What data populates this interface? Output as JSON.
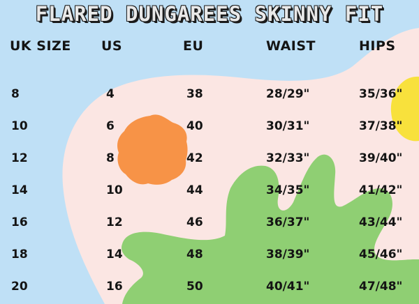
{
  "title": "FLARED DUNGAREES SKINNY FIT",
  "headers": [
    "UK SIZE",
    "US",
    "EU",
    "WAIST",
    "HIPS"
  ],
  "rows": [
    [
      "8",
      "4",
      "38",
      "28/29\"",
      "35/36\""
    ],
    [
      "10",
      "6",
      "40",
      "30/31\"",
      "37/38\""
    ],
    [
      "12",
      "8",
      "42",
      "32/33\"",
      "39/40\""
    ],
    [
      "14",
      "10",
      "44",
      "34/35\"",
      "41/42\""
    ],
    [
      "16",
      "12",
      "46",
      "36/37\"",
      "43/44\""
    ],
    [
      "18",
      "14",
      "48",
      "38/39\"",
      "45/46\""
    ],
    [
      "20",
      "16",
      "50",
      "40/41\"",
      "47/48\""
    ]
  ],
  "colors": {
    "background": "#fbe6e3",
    "blue_shape": "#bfe0f6",
    "orange_flower": "#f79347",
    "yellow_shape": "#f8e13c",
    "green_leaf": "#8fcf73"
  }
}
